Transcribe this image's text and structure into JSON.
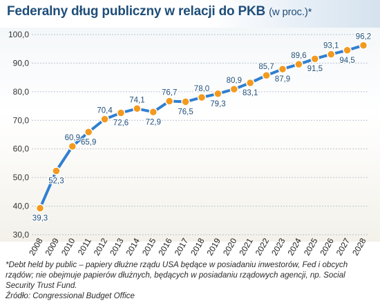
{
  "title": {
    "main": "Federalny dług publiczny w relacji do PKB",
    "sub": "(w proc.)*"
  },
  "footnote": {
    "line1": "*Debt held by public – papiery dłużne rządu USA będące w posiadaniu inwestorów, Fed i obcych rządów; nie obejmuje papierów dłużnych, będących w posiadaniu rządowych agencji, np. Social Security Trust Fund.",
    "source": "Źródło: Congressional Budget Office"
  },
  "colors": {
    "line": "#2f7fd1",
    "marker": "#f39a1e",
    "title": "#1f4e79",
    "label": "#1f4e79"
  },
  "chart_data": {
    "type": "line",
    "categories": [
      "2008",
      "2009",
      "2010",
      "2011",
      "2012",
      "2013",
      "2014",
      "2015",
      "2016",
      "2017",
      "2018",
      "2019",
      "2020",
      "2021",
      "2022",
      "2023",
      "2024",
      "2025",
      "2026",
      "2027",
      "2028"
    ],
    "values": [
      39.3,
      52.3,
      60.9,
      65.9,
      70.4,
      72.6,
      74.1,
      72.9,
      76.7,
      76.5,
      78.0,
      79.3,
      80.9,
      83.1,
      85.7,
      87.9,
      89.6,
      91.5,
      93.1,
      94.5,
      96.2
    ],
    "value_labels": [
      "39,3",
      "52,3",
      "60,9",
      "65,9",
      "70,4",
      "72,6",
      "74,1",
      "72,9",
      "76,7",
      "76,5",
      "78,0",
      "79,3",
      "80,9",
      "83,1",
      "85,7",
      "87,9",
      "89,6",
      "91,5",
      "93,1",
      "94,5",
      "96,2"
    ],
    "label_position": [
      "below",
      "below",
      "above",
      "below",
      "above",
      "below",
      "above",
      "below",
      "above",
      "below",
      "above",
      "below",
      "above",
      "below",
      "above",
      "below",
      "above",
      "below",
      "above",
      "below",
      "above"
    ],
    "yticks": [
      30,
      40,
      50,
      60,
      70,
      80,
      90,
      100
    ],
    "ytick_labels": [
      "30,0",
      "40,0",
      "50,0",
      "60,0",
      "70,0",
      "80,0",
      "90,0",
      "100,0"
    ],
    "ylim": [
      30,
      100
    ],
    "grid": true,
    "title": "Federalny dług publiczny w relacji do PKB (w proc.)*",
    "xlabel": "",
    "ylabel": ""
  }
}
